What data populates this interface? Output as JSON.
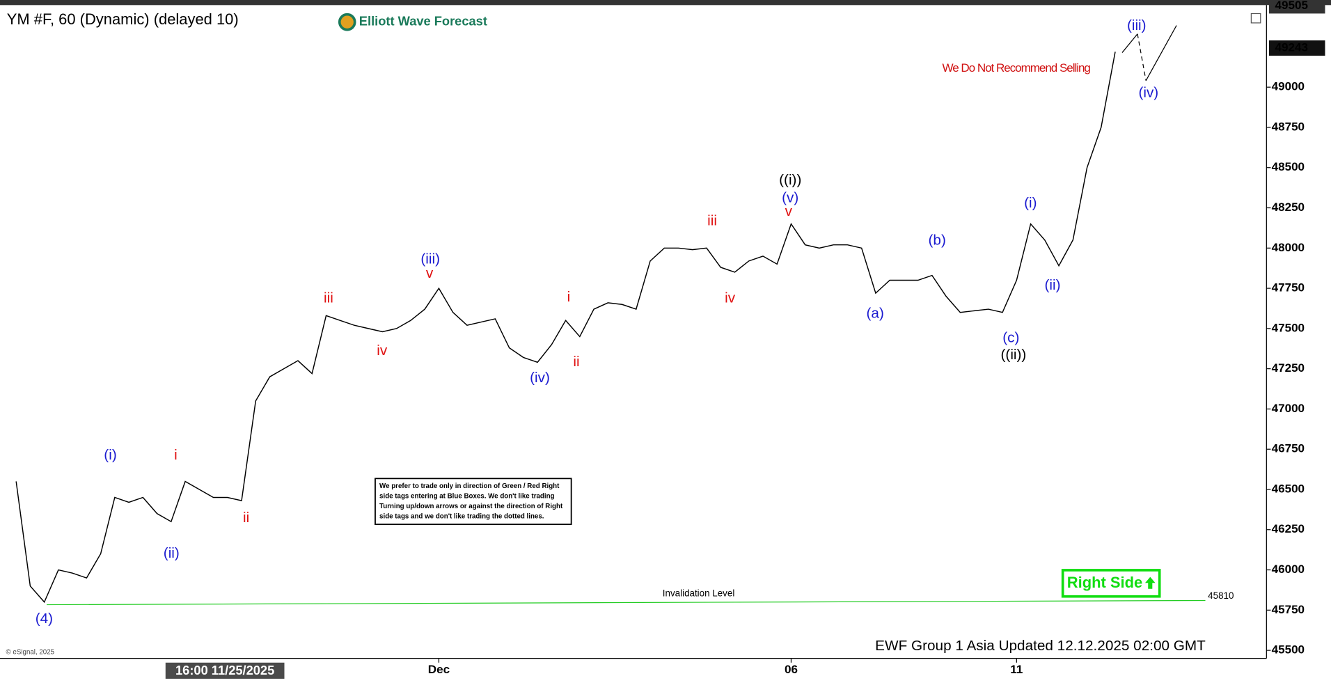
{
  "chart_data": {
    "type": "line",
    "title": "YM #F, 60 (Dynamic) (delayed 10)",
    "logo": "Elliott Wave Forecast",
    "warning": "We Do Not Recommend Selling",
    "note_lines": [
      "We prefer to trade only in direction of Green / Red Right",
      "side tags entering at Blue Boxes. We don't like trading",
      "Turning up/down arrows or against the direction of Right",
      "side tags and we don't like trading the dotted lines."
    ],
    "right_side": "Right Side",
    "updated": "EWF Group 1 Asia Updated 12.12.2025 02:00 GMT",
    "copyright": "© eSignal, 2025",
    "cursor_label": "16:00 11/25/2025",
    "invalidation": {
      "label": "Invalidation Level",
      "value": 45810,
      "color": "#22cc22"
    },
    "price_tags": [
      49505,
      49243
    ],
    "categories": [
      null,
      null,
      null,
      null,
      null,
      null,
      null,
      null,
      null,
      null,
      null,
      null,
      null,
      null,
      null,
      null,
      null,
      null,
      null,
      null,
      null,
      null,
      null,
      null,
      null,
      null,
      null,
      null,
      null,
      null,
      "Dec",
      null,
      null,
      null,
      null,
      null,
      null,
      null,
      null,
      null,
      null,
      null,
      null,
      null,
      null,
      null,
      null,
      null,
      null,
      null,
      null,
      null,
      null,
      null,
      null,
      "06",
      null,
      null,
      null,
      null,
      null,
      null,
      null,
      null,
      null,
      null,
      null,
      null,
      null,
      null,
      null,
      "11",
      null,
      null,
      null,
      null,
      null,
      null,
      null
    ],
    "series": [
      {
        "name": "YM #F",
        "color": "#000000",
        "values": [
          46550,
          45900,
          45800,
          46000,
          45980,
          45950,
          46100,
          46450,
          46420,
          46450,
          46350,
          46300,
          46550,
          46500,
          46450,
          46450,
          46430,
          47050,
          47200,
          47250,
          47300,
          47220,
          47580,
          47550,
          47520,
          47500,
          47480,
          47500,
          47550,
          47620,
          47750,
          47600,
          47520,
          47540,
          47560,
          47380,
          47320,
          47290,
          47400,
          47550,
          47450,
          47620,
          47660,
          47650,
          47620,
          47920,
          48000,
          48000,
          47990,
          48000,
          47880,
          47850,
          47920,
          47950,
          47900,
          48150,
          48020,
          48000,
          48020,
          48020,
          48000,
          47720,
          47800,
          47800,
          47800,
          47830,
          47700,
          47600,
          47610,
          47620,
          47600,
          47800,
          48150,
          48050,
          47890,
          48050,
          48500,
          48750,
          49220
        ]
      }
    ],
    "ylim": [
      45450,
      49510
    ],
    "yticks": [
      45500,
      45750,
      46000,
      46250,
      46500,
      46750,
      47000,
      47250,
      47500,
      47750,
      48000,
      48250,
      48500,
      48750,
      49000
    ],
    "annotations": [
      {
        "text": "(4)",
        "color": "#1a1ad0"
      },
      {
        "text": "(i)",
        "color": "#1a1ad0"
      },
      {
        "text": "(ii)",
        "color": "#1a1ad0"
      },
      {
        "text": "i",
        "color": "#e01010"
      },
      {
        "text": "ii",
        "color": "#e01010"
      },
      {
        "text": "iii",
        "color": "#e01010"
      },
      {
        "text": "iv",
        "color": "#e01010"
      },
      {
        "text": "(iii)",
        "color": "#1a1ad0"
      },
      {
        "text": "v",
        "color": "#e01010"
      },
      {
        "text": "(iv)",
        "color": "#1a1ad0"
      },
      {
        "text": "i",
        "color": "#e01010"
      },
      {
        "text": "ii",
        "color": "#e01010"
      },
      {
        "text": "iii",
        "color": "#e01010"
      },
      {
        "text": "iv",
        "color": "#e01010"
      },
      {
        "text": "((i))",
        "color": "#000000"
      },
      {
        "text": "(v)",
        "color": "#1a1ad0"
      },
      {
        "text": "v",
        "color": "#e01010"
      },
      {
        "text": "(a)",
        "color": "#1a1ad0"
      },
      {
        "text": "(b)",
        "color": "#1a1ad0"
      },
      {
        "text": "(c)",
        "color": "#1a1ad0"
      },
      {
        "text": "((ii))",
        "color": "#000000"
      },
      {
        "text": "(i)",
        "color": "#1a1ad0"
      },
      {
        "text": "(ii)",
        "color": "#1a1ad0"
      },
      {
        "text": "(iii)",
        "color": "#1a1ad0"
      },
      {
        "text": "(iv)",
        "color": "#1a1ad0"
      }
    ]
  }
}
